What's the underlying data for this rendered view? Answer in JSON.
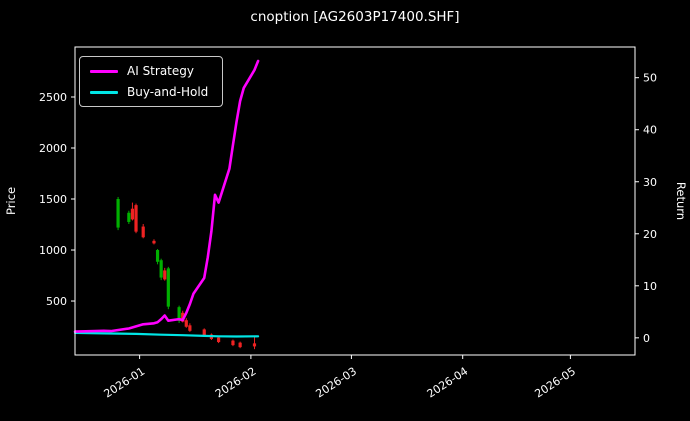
{
  "title": "cnoption [AG2603P17400.SHF]",
  "axes": {
    "left_label": "Price",
    "right_label": "Return"
  },
  "legend": [
    {
      "label": "AI Strategy",
      "color": "#ff00ff"
    },
    {
      "label": "Buy-and-Hold",
      "color": "#00e5e5"
    }
  ],
  "colors": {
    "background": "#000000",
    "text": "#ffffff",
    "axis": "#ffffff",
    "ai_strategy": "#ff00ff",
    "buy_and_hold": "#00e5e5",
    "candle_up": "#00b000",
    "candle_down": "#ee2222"
  },
  "chart_data": {
    "type": "candlestick+line",
    "title": "cnoption [AG2603P17400.SHF]",
    "x_axis": {
      "tick_labels": [
        "2026-01",
        "2026-02",
        "2026-03",
        "2026-04",
        "2026-05"
      ],
      "tick_dates": [
        "2026-01-01",
        "2026-02-01",
        "2026-03-01",
        "2026-04-01",
        "2026-05-01"
      ],
      "domain": [
        "2025-12-14",
        "2026-05-19"
      ],
      "tick_rotation_deg": -33
    },
    "left_axis": {
      "label": "Price",
      "ticks": [
        500,
        1000,
        1500,
        2000,
        2500
      ],
      "range": [
        -29,
        2990
      ]
    },
    "right_axis": {
      "label": "Return",
      "ticks": [
        0,
        10,
        20,
        30,
        40,
        50
      ],
      "range": [
        -3.3,
        55.9
      ]
    },
    "candles": [
      {
        "date": "2025-12-26",
        "open": 1220,
        "high": 1520,
        "low": 1195,
        "close": 1500
      },
      {
        "date": "2025-12-29",
        "open": 1275,
        "high": 1385,
        "low": 1255,
        "close": 1365
      },
      {
        "date": "2025-12-30",
        "open": 1405,
        "high": 1465,
        "low": 1290,
        "close": 1300
      },
      {
        "date": "2025-12-31",
        "open": 1440,
        "high": 1455,
        "low": 1165,
        "close": 1180
      },
      {
        "date": "2026-01-02",
        "open": 1230,
        "high": 1255,
        "low": 1115,
        "close": 1125
      },
      {
        "date": "2026-01-05",
        "open": 1090,
        "high": 1105,
        "low": 1055,
        "close": 1065
      },
      {
        "date": "2026-01-06",
        "open": 885,
        "high": 1010,
        "low": 860,
        "close": 1000
      },
      {
        "date": "2026-01-07",
        "open": 730,
        "high": 915,
        "low": 705,
        "close": 900
      },
      {
        "date": "2026-01-08",
        "open": 800,
        "high": 825,
        "low": 700,
        "close": 712
      },
      {
        "date": "2026-01-09",
        "open": 445,
        "high": 835,
        "low": 420,
        "close": 820
      },
      {
        "date": "2026-01-12",
        "open": 305,
        "high": 455,
        "low": 285,
        "close": 440
      },
      {
        "date": "2026-01-13",
        "open": 385,
        "high": 405,
        "low": 290,
        "close": 298
      },
      {
        "date": "2026-01-14",
        "open": 312,
        "high": 332,
        "low": 238,
        "close": 248
      },
      {
        "date": "2026-01-15",
        "open": 262,
        "high": 282,
        "low": 198,
        "close": 208
      },
      {
        "date": "2026-01-19",
        "open": 222,
        "high": 232,
        "low": 148,
        "close": 158
      },
      {
        "date": "2026-01-21",
        "open": 172,
        "high": 182,
        "low": 118,
        "close": 128
      },
      {
        "date": "2026-01-23",
        "open": 142,
        "high": 152,
        "low": 88,
        "close": 98
      },
      {
        "date": "2026-01-27",
        "open": 112,
        "high": 122,
        "low": 58,
        "close": 68
      },
      {
        "date": "2026-01-29",
        "open": 92,
        "high": 102,
        "low": 38,
        "close": 48
      },
      {
        "date": "2026-02-02",
        "open": 85,
        "high": 160,
        "low": 28,
        "close": 55
      }
    ],
    "series": [
      {
        "name": "Buy-and-Hold",
        "axis": "right",
        "color": "#00e5e5",
        "width": 2.2,
        "points": [
          [
            "2025-12-14",
            0.95
          ],
          [
            "2025-12-22",
            0.85
          ],
          [
            "2025-12-31",
            0.75
          ],
          [
            "2026-01-07",
            0.6
          ],
          [
            "2026-01-13",
            0.5
          ],
          [
            "2026-01-19",
            0.38
          ],
          [
            "2026-01-23",
            0.3
          ],
          [
            "2026-01-28",
            0.25
          ],
          [
            "2026-02-03",
            0.3
          ]
        ]
      },
      {
        "name": "AI Strategy",
        "axis": "right",
        "color": "#ff00ff",
        "width": 2.6,
        "points": [
          [
            "2025-12-14",
            1.2
          ],
          [
            "2025-12-17",
            1.25
          ],
          [
            "2025-12-22",
            1.35
          ],
          [
            "2025-12-24",
            1.3
          ],
          [
            "2025-12-29",
            1.8
          ],
          [
            "2026-01-02",
            2.6
          ],
          [
            "2026-01-05",
            2.8
          ],
          [
            "2026-01-06",
            3.0
          ],
          [
            "2026-01-07",
            3.6
          ],
          [
            "2026-01-08",
            4.3
          ],
          [
            "2026-01-09",
            3.3
          ],
          [
            "2026-01-12",
            3.6
          ],
          [
            "2026-01-13",
            3.4
          ],
          [
            "2026-01-14",
            4.8
          ],
          [
            "2026-01-15",
            6.5
          ],
          [
            "2026-01-16",
            8.5
          ],
          [
            "2026-01-19",
            11.5
          ],
          [
            "2026-01-20",
            15.5
          ],
          [
            "2026-01-21",
            20.5
          ],
          [
            "2026-01-22",
            27.5
          ],
          [
            "2026-01-23",
            26.0
          ],
          [
            "2026-01-26",
            32.5
          ],
          [
            "2026-01-27",
            37.0
          ],
          [
            "2026-01-28",
            41.5
          ],
          [
            "2026-01-29",
            45.5
          ],
          [
            "2026-01-30",
            48.0
          ],
          [
            "2026-02-02",
            51.5
          ],
          [
            "2026-02-03",
            53.2
          ]
        ]
      }
    ]
  }
}
